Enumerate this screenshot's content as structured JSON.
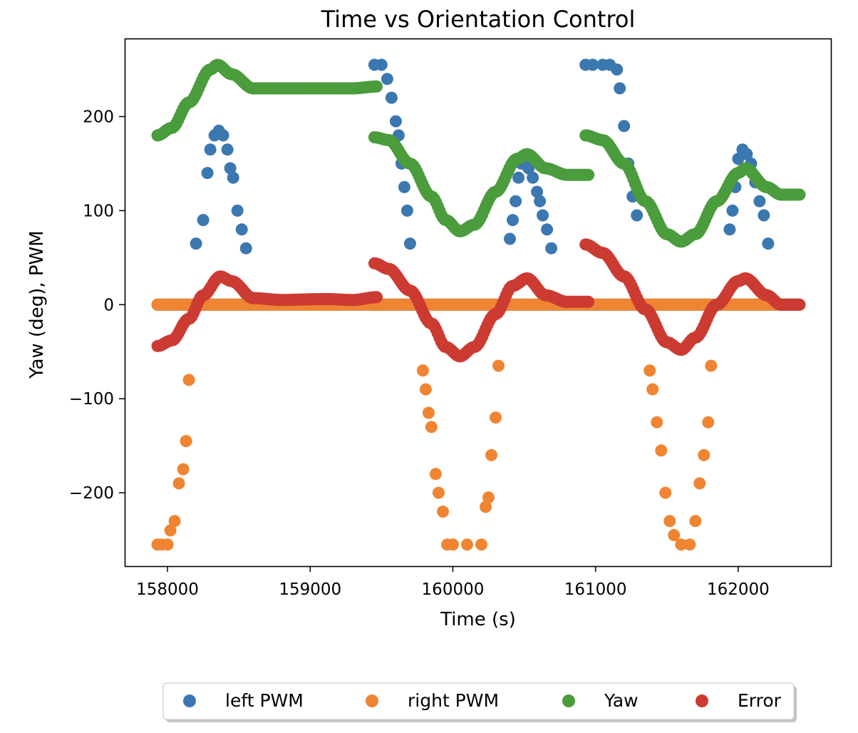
{
  "chart_data": {
    "type": "scatter",
    "title": "Time vs Orientation Control",
    "xlabel": "Time (s)",
    "ylabel": "Yaw (deg), PWM",
    "xlim": [
      157700,
      162650
    ],
    "ylim": [
      -278,
      283
    ],
    "xticks": [
      158000,
      159000,
      160000,
      161000,
      162000
    ],
    "yticks": [
      -200,
      -100,
      0,
      100,
      200
    ],
    "xtick_labels": [
      "158000",
      "159000",
      "160000",
      "161000",
      "162000"
    ],
    "ytick_labels": [
      "−200",
      "−100",
      "0",
      "100",
      "200"
    ],
    "grid": false,
    "legend_position": "bottom-center, below plot",
    "segments": [
      {
        "start": 157930,
        "end": 159470
      },
      {
        "start": 159450,
        "end": 160950
      },
      {
        "start": 160930,
        "end": 162440
      }
    ],
    "series": [
      {
        "name": "left PWM",
        "color": "#3b78b0",
        "baseline": 0,
        "pulses": [
          {
            "x": [
              158200,
              158250,
              158280,
              158300,
              158330,
              158360,
              158390,
              158420,
              158440,
              158460,
              158490,
              158520,
              158550
            ],
            "y": [
              65,
              90,
              140,
              165,
              180,
              185,
              180,
              165,
              145,
              135,
              100,
              80,
              60
            ]
          },
          {
            "x": [
              159450,
              159500,
              159540,
              159570,
              159600,
              159620,
              159640,
              159660,
              159680,
              159700
            ],
            "y": [
              255,
              255,
              240,
              220,
              195,
              180,
              150,
              125,
              100,
              65
            ]
          },
          {
            "x": [
              160400,
              160420,
              160440,
              160460,
              160480,
              160500,
              160530,
              160560,
              160590,
              160610,
              160630,
              160660,
              160690
            ],
            "y": [
              70,
              90,
              110,
              135,
              150,
              150,
              145,
              135,
              120,
              110,
              95,
              80,
              60
            ]
          },
          {
            "x": [
              160930,
              160980,
              161050,
              161100,
              161150,
              161170,
              161200,
              161230,
              161260,
              161290
            ],
            "y": [
              255,
              255,
              255,
              255,
              250,
              230,
              190,
              150,
              115,
              95
            ]
          },
          {
            "x": [
              161940,
              161960,
              161980,
              162000,
              162030,
              162060,
              162090,
              162120,
              162150,
              162180,
              162210
            ],
            "y": [
              80,
              100,
              125,
              155,
              165,
              160,
              150,
              130,
              110,
              95,
              65
            ]
          }
        ]
      },
      {
        "name": "right PWM",
        "color": "#ef8533",
        "baseline": 0,
        "pulses": [
          {
            "x": [
              157930,
              157960,
              158000,
              158020,
              158050,
              158080,
              158110,
              158130,
              158150
            ],
            "y": [
              -255,
              -255,
              -255,
              -240,
              -230,
              -190,
              -175,
              -145,
              -80
            ]
          },
          {
            "x": [
              159790,
              159810,
              159830,
              159850,
              159880,
              159900,
              159930,
              159960,
              160000,
              160100,
              160200,
              160230,
              160250,
              160270,
              160300,
              160320
            ],
            "y": [
              -70,
              -90,
              -115,
              -130,
              -180,
              -200,
              -220,
              -255,
              -255,
              -255,
              -255,
              -215,
              -205,
              -160,
              -120,
              -65
            ]
          },
          {
            "x": [
              161380,
              161400,
              161430,
              161460,
              161490,
              161520,
              161550,
              161600,
              161660,
              161700,
              161730,
              161760,
              161790,
              161810
            ],
            "y": [
              -70,
              -90,
              -125,
              -155,
              -200,
              -230,
              -245,
              -255,
              -255,
              -230,
              -190,
              -160,
              -125,
              -65
            ]
          }
        ]
      },
      {
        "name": "Yaw",
        "color": "#4a9c3c",
        "keyframes": [
          [
            {
              "x": 157930,
              "y": 180
            },
            {
              "x": 158030,
              "y": 188
            },
            {
              "x": 158150,
              "y": 215
            },
            {
              "x": 158300,
              "y": 250
            },
            {
              "x": 158350,
              "y": 255
            },
            {
              "x": 158450,
              "y": 245
            },
            {
              "x": 158600,
              "y": 230
            },
            {
              "x": 158800,
              "y": 230
            },
            {
              "x": 159100,
              "y": 230
            },
            {
              "x": 159300,
              "y": 230
            },
            {
              "x": 159470,
              "y": 232
            }
          ],
          [
            {
              "x": 159450,
              "y": 178
            },
            {
              "x": 159550,
              "y": 175
            },
            {
              "x": 159700,
              "y": 150
            },
            {
              "x": 159850,
              "y": 115
            },
            {
              "x": 159950,
              "y": 90
            },
            {
              "x": 160050,
              "y": 78
            },
            {
              "x": 160150,
              "y": 85
            },
            {
              "x": 160300,
              "y": 120
            },
            {
              "x": 160450,
              "y": 155
            },
            {
              "x": 160520,
              "y": 160
            },
            {
              "x": 160650,
              "y": 145
            },
            {
              "x": 160800,
              "y": 138
            },
            {
              "x": 160950,
              "y": 138
            }
          ],
          [
            {
              "x": 160930,
              "y": 180
            },
            {
              "x": 161050,
              "y": 175
            },
            {
              "x": 161200,
              "y": 150
            },
            {
              "x": 161350,
              "y": 110
            },
            {
              "x": 161500,
              "y": 75
            },
            {
              "x": 161600,
              "y": 67
            },
            {
              "x": 161700,
              "y": 75
            },
            {
              "x": 161850,
              "y": 110
            },
            {
              "x": 162000,
              "y": 140
            },
            {
              "x": 162050,
              "y": 145
            },
            {
              "x": 162200,
              "y": 125
            },
            {
              "x": 162300,
              "y": 117
            },
            {
              "x": 162440,
              "y": 117
            }
          ]
        ]
      },
      {
        "name": "Error",
        "color": "#cc3b32",
        "keyframes": [
          [
            {
              "x": 157930,
              "y": -44
            },
            {
              "x": 158030,
              "y": -38
            },
            {
              "x": 158150,
              "y": -15
            },
            {
              "x": 158250,
              "y": 10
            },
            {
              "x": 158370,
              "y": 30
            },
            {
              "x": 158450,
              "y": 25
            },
            {
              "x": 158600,
              "y": 7
            },
            {
              "x": 158800,
              "y": 5
            },
            {
              "x": 159100,
              "y": 6
            },
            {
              "x": 159300,
              "y": 5
            },
            {
              "x": 159470,
              "y": 8
            }
          ],
          [
            {
              "x": 159450,
              "y": 44
            },
            {
              "x": 159550,
              "y": 38
            },
            {
              "x": 159700,
              "y": 15
            },
            {
              "x": 159850,
              "y": -20
            },
            {
              "x": 159950,
              "y": -45
            },
            {
              "x": 160050,
              "y": -55
            },
            {
              "x": 160150,
              "y": -45
            },
            {
              "x": 160300,
              "y": -10
            },
            {
              "x": 160420,
              "y": 20
            },
            {
              "x": 160520,
              "y": 28
            },
            {
              "x": 160650,
              "y": 10
            },
            {
              "x": 160800,
              "y": 3
            },
            {
              "x": 160950,
              "y": 3
            }
          ],
          [
            {
              "x": 160930,
              "y": 64
            },
            {
              "x": 161050,
              "y": 55
            },
            {
              "x": 161200,
              "y": 30
            },
            {
              "x": 161350,
              "y": -5
            },
            {
              "x": 161500,
              "y": -40
            },
            {
              "x": 161600,
              "y": -48
            },
            {
              "x": 161700,
              "y": -35
            },
            {
              "x": 161850,
              "y": 0
            },
            {
              "x": 162000,
              "y": 25
            },
            {
              "x": 162050,
              "y": 28
            },
            {
              "x": 162200,
              "y": 10
            },
            {
              "x": 162300,
              "y": 0
            },
            {
              "x": 162440,
              "y": 0
            }
          ]
        ]
      }
    ]
  }
}
